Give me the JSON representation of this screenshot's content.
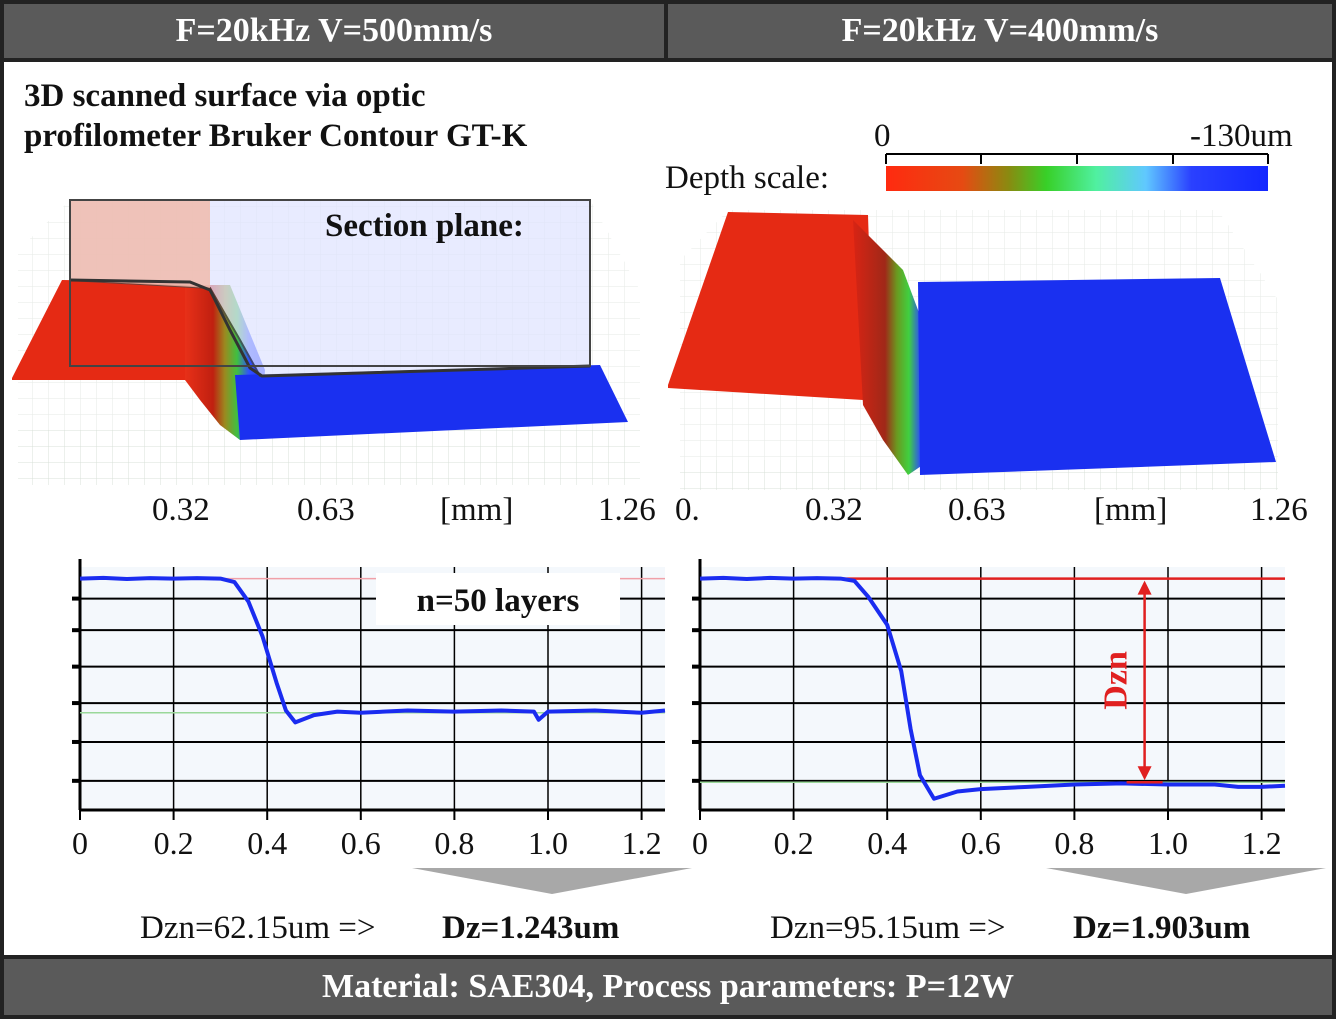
{
  "headers": {
    "left": "F=20kHz V=500mm/s",
    "right": "F=20kHz V=400mm/s"
  },
  "description": {
    "line1": "3D scanned surface via optic",
    "line2": "profilometer Bruker Contour GT-K"
  },
  "depth_scale": {
    "label": "Depth scale:",
    "min_label": "0",
    "max_label": "-130um",
    "colors": [
      "#ff2a10",
      "#e64a12",
      "#8a8a10",
      "#38d028",
      "#50f0a0",
      "#60c8ff",
      "#2a40ff",
      "#1428ff"
    ]
  },
  "surface_left": {
    "section_label": "Section plane:",
    "x_ticks": [
      "0.32",
      "0.63",
      "[mm]",
      "1.26"
    ]
  },
  "surface_right": {
    "x_ticks": [
      "0.",
      "0.32",
      "0.63",
      "[mm]",
      "1.26"
    ]
  },
  "chart_data": [
    {
      "type": "line",
      "x_ticks": [
        "0",
        "0.2",
        "0.4",
        "0.6",
        "0.8",
        "1.0",
        "1.2"
      ],
      "xlim": [
        0,
        1.25
      ],
      "annotation": "n=50 layers",
      "series": [
        {
          "values": [
            [
              0.0,
              0.0
            ],
            [
              0.05,
              0.3
            ],
            [
              0.1,
              -0.2
            ],
            [
              0.15,
              0.2
            ],
            [
              0.2,
              0.0
            ],
            [
              0.25,
              0.2
            ],
            [
              0.3,
              0.0
            ],
            [
              0.33,
              -1.5
            ],
            [
              0.36,
              -10
            ],
            [
              0.39,
              -25
            ],
            [
              0.42,
              -45
            ],
            [
              0.44,
              -57
            ],
            [
              0.46,
              -62.15
            ],
            [
              0.5,
              -59
            ],
            [
              0.55,
              -57.5
            ],
            [
              0.6,
              -58
            ],
            [
              0.7,
              -57
            ],
            [
              0.8,
              -57.5
            ],
            [
              0.9,
              -57
            ],
            [
              0.97,
              -57.5
            ],
            [
              0.98,
              -61
            ],
            [
              1.0,
              -57.5
            ],
            [
              1.1,
              -57
            ],
            [
              1.2,
              -58
            ],
            [
              1.25,
              -57
            ]
          ]
        }
      ],
      "reference_lines": {
        "top": 0,
        "bottom": -58
      },
      "result": {
        "dzn": "Dzn=62.15um =>",
        "dz": "Dz=1.243um"
      }
    },
    {
      "type": "line",
      "x_ticks": [
        "0",
        "0.2",
        "0.4",
        "0.6",
        "0.8",
        "1.0",
        "1.2"
      ],
      "xlim": [
        0,
        1.25
      ],
      "annotation": "Dzn",
      "series": [
        {
          "values": [
            [
              0.0,
              0.0
            ],
            [
              0.05,
              0.3
            ],
            [
              0.1,
              -0.2
            ],
            [
              0.15,
              0.3
            ],
            [
              0.2,
              0.0
            ],
            [
              0.25,
              0.2
            ],
            [
              0.3,
              0.0
            ],
            [
              0.33,
              -1
            ],
            [
              0.36,
              -8
            ],
            [
              0.4,
              -20
            ],
            [
              0.43,
              -40
            ],
            [
              0.45,
              -65
            ],
            [
              0.47,
              -85
            ],
            [
              0.5,
              -95.15
            ],
            [
              0.55,
              -92
            ],
            [
              0.6,
              -91
            ],
            [
              0.7,
              -90
            ],
            [
              0.8,
              -89
            ],
            [
              0.9,
              -88.5
            ],
            [
              1.0,
              -89
            ],
            [
              1.1,
              -89
            ],
            [
              1.15,
              -90
            ],
            [
              1.2,
              -90
            ],
            [
              1.25,
              -89.5
            ]
          ]
        }
      ],
      "reference_lines": {
        "top": 0,
        "bottom": -88
      },
      "result": {
        "dzn": "Dzn=95.15um =>",
        "dz": "Dz=1.903um"
      }
    }
  ],
  "footer": "Material: SAE304,  Process parameters: P=12W"
}
